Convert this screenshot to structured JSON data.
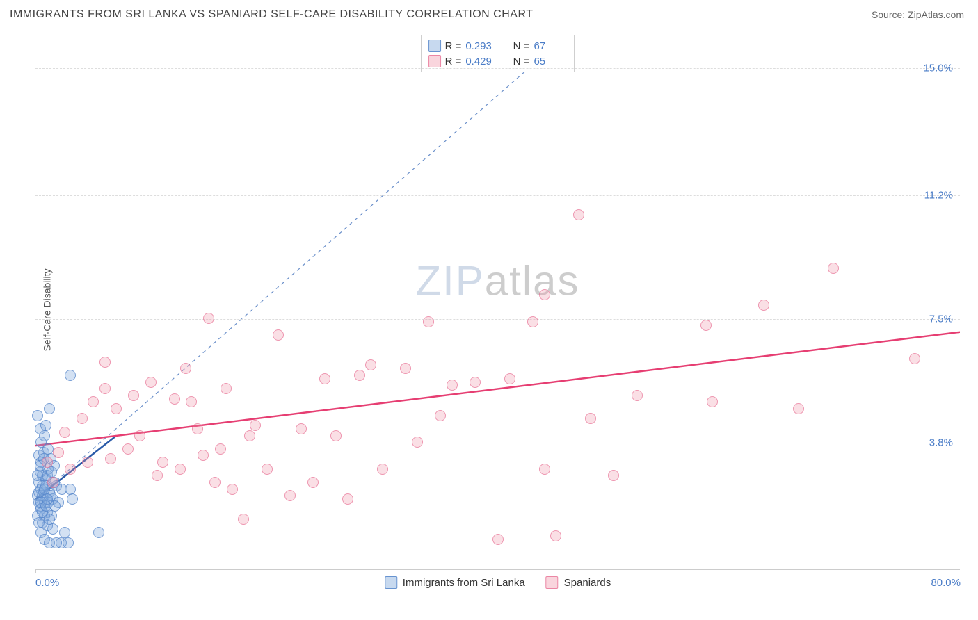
{
  "header": {
    "title": "IMMIGRANTS FROM SRI LANKA VS SPANIARD SELF-CARE DISABILITY CORRELATION CHART",
    "source_prefix": "Source: ",
    "source_name": "ZipAtlas.com"
  },
  "watermark": {
    "zip": "ZIP",
    "atlas": "atlas"
  },
  "chart": {
    "type": "scatter",
    "background_color": "#ffffff",
    "grid_color": "#dddddd",
    "axis_color": "#cccccc",
    "label_color": "#555555",
    "tick_label_color": "#4a7cc7",
    "xlim": [
      0,
      80
    ],
    "ylim": [
      0,
      16
    ],
    "x_ticks": [
      0,
      16,
      32,
      48,
      64,
      80
    ],
    "x_tick_labels_shown": {
      "0": "0.0%",
      "80": "80.0%"
    },
    "y_gridlines": [
      3.8,
      7.5,
      11.2,
      15.0
    ],
    "y_tick_labels": [
      "3.8%",
      "7.5%",
      "11.2%",
      "15.0%"
    ],
    "y_axis_label": "Self-Care Disability",
    "series": [
      {
        "name": "Immigrants from Sri Lanka",
        "color_fill": "rgba(130,170,220,0.35)",
        "color_stroke": "rgba(80,130,200,0.7)",
        "marker_radius_px": 8,
        "R": "0.293",
        "N": "67",
        "trend": {
          "x1": 0,
          "y1": 2.1,
          "x2": 7,
          "y2": 4.0,
          "stroke": "#2a5aa8",
          "width": 2.5,
          "dash": "none"
        },
        "ref_line": {
          "x1": 0,
          "y1": 2.1,
          "x2": 46,
          "y2": 16.0,
          "stroke": "#6a8fca",
          "width": 1.2,
          "dash": "5,5"
        },
        "points": [
          [
            0.2,
            2.2
          ],
          [
            0.3,
            2.6
          ],
          [
            0.4,
            1.9
          ],
          [
            0.5,
            2.4
          ],
          [
            0.6,
            2.8
          ],
          [
            0.5,
            3.2
          ],
          [
            0.3,
            3.4
          ],
          [
            0.8,
            2.0
          ],
          [
            0.6,
            1.4
          ],
          [
            1.0,
            1.7
          ],
          [
            1.2,
            2.3
          ],
          [
            0.9,
            2.7
          ],
          [
            1.1,
            3.0
          ],
          [
            0.7,
            3.5
          ],
          [
            1.3,
            3.3
          ],
          [
            1.5,
            2.1
          ],
          [
            0.4,
            4.2
          ],
          [
            0.2,
            4.6
          ],
          [
            1.8,
            2.5
          ],
          [
            2.0,
            2.0
          ],
          [
            2.3,
            2.4
          ],
          [
            1.6,
            3.1
          ],
          [
            0.5,
            1.1
          ],
          [
            0.8,
            0.9
          ],
          [
            1.2,
            0.8
          ],
          [
            1.5,
            1.2
          ],
          [
            2.2,
            0.8
          ],
          [
            3.0,
            2.4
          ],
          [
            3.2,
            2.1
          ],
          [
            0.3,
            2.0
          ],
          [
            0.6,
            2.2
          ],
          [
            0.9,
            2.5
          ],
          [
            1.0,
            1.3
          ],
          [
            1.4,
            1.6
          ],
          [
            0.4,
            2.9
          ],
          [
            0.7,
            2.3
          ],
          [
            1.1,
            2.0
          ],
          [
            1.6,
            2.6
          ],
          [
            2.5,
            1.1
          ],
          [
            5.5,
            1.1
          ],
          [
            3.0,
            5.8
          ],
          [
            2.8,
            0.8
          ],
          [
            1.8,
            0.8
          ],
          [
            0.9,
            4.3
          ],
          [
            1.2,
            4.8
          ],
          [
            0.2,
            1.6
          ],
          [
            0.5,
            1.8
          ],
          [
            0.8,
            1.6
          ],
          [
            0.3,
            2.3
          ],
          [
            0.6,
            2.5
          ],
          [
            1.0,
            2.8
          ],
          [
            1.3,
            2.2
          ],
          [
            1.7,
            1.9
          ],
          [
            0.4,
            3.1
          ],
          [
            0.7,
            3.3
          ],
          [
            1.1,
            3.6
          ],
          [
            0.5,
            2.0
          ],
          [
            0.8,
            2.4
          ],
          [
            1.4,
            2.9
          ],
          [
            0.2,
            2.8
          ],
          [
            0.6,
            1.7
          ],
          [
            0.9,
            1.9
          ],
          [
            1.2,
            1.5
          ],
          [
            0.3,
            1.4
          ],
          [
            0.5,
            3.8
          ],
          [
            0.8,
            4.0
          ],
          [
            1.0,
            2.1
          ]
        ]
      },
      {
        "name": "Spaniards",
        "color_fill": "rgba(240,150,170,0.3)",
        "color_stroke": "rgba(230,100,140,0.6)",
        "marker_radius_px": 8,
        "R": "0.429",
        "N": "65",
        "trend": {
          "x1": 0,
          "y1": 3.7,
          "x2": 80,
          "y2": 7.1,
          "stroke": "#e63e72",
          "width": 2.5,
          "dash": "none"
        },
        "points": [
          [
            1.0,
            3.2
          ],
          [
            1.5,
            2.6
          ],
          [
            2.0,
            3.5
          ],
          [
            2.5,
            4.1
          ],
          [
            3.0,
            3.0
          ],
          [
            4.0,
            4.5
          ],
          [
            5.0,
            5.0
          ],
          [
            6.0,
            5.4
          ],
          [
            6.5,
            3.3
          ],
          [
            7.0,
            4.8
          ],
          [
            8.0,
            3.6
          ],
          [
            8.5,
            5.2
          ],
          [
            9.0,
            4.0
          ],
          [
            10.0,
            5.6
          ],
          [
            10.5,
            2.8
          ],
          [
            11.0,
            3.2
          ],
          [
            12.0,
            5.1
          ],
          [
            12.5,
            3.0
          ],
          [
            13.0,
            6.0
          ],
          [
            14.0,
            4.2
          ],
          [
            15.0,
            7.5
          ],
          [
            15.5,
            2.6
          ],
          [
            16.0,
            3.6
          ],
          [
            17.0,
            2.4
          ],
          [
            18.0,
            1.5
          ],
          [
            18.5,
            4.0
          ],
          [
            19.0,
            4.3
          ],
          [
            20.0,
            3.0
          ],
          [
            21.0,
            7.0
          ],
          [
            22.0,
            2.2
          ],
          [
            23.0,
            4.2
          ],
          [
            24.0,
            2.6
          ],
          [
            25.0,
            5.7
          ],
          [
            26.0,
            4.0
          ],
          [
            27.0,
            2.1
          ],
          [
            28.0,
            5.8
          ],
          [
            29.0,
            6.1
          ],
          [
            30.0,
            3.0
          ],
          [
            32.0,
            6.0
          ],
          [
            34.0,
            7.4
          ],
          [
            36.0,
            5.5
          ],
          [
            38.0,
            5.6
          ],
          [
            40.0,
            0.9
          ],
          [
            41.0,
            5.7
          ],
          [
            43.0,
            7.4
          ],
          [
            44.0,
            8.2
          ],
          [
            44.0,
            3.0
          ],
          [
            47.0,
            10.6
          ],
          [
            45.0,
            1.0
          ],
          [
            58.0,
            7.3
          ],
          [
            58.5,
            5.0
          ],
          [
            63.0,
            7.9
          ],
          [
            66.0,
            4.8
          ],
          [
            69.0,
            9.0
          ],
          [
            76.0,
            6.3
          ],
          [
            48.0,
            4.5
          ],
          [
            50.0,
            2.8
          ],
          [
            52.0,
            5.2
          ],
          [
            33.0,
            3.8
          ],
          [
            35.0,
            4.6
          ],
          [
            6.0,
            6.2
          ],
          [
            13.5,
            5.0
          ],
          [
            16.5,
            5.4
          ],
          [
            4.5,
            3.2
          ],
          [
            14.5,
            3.4
          ]
        ]
      }
    ]
  },
  "legend_top": {
    "r_label": "R =",
    "n_label": "N ="
  },
  "legend_bottom": {
    "items": [
      "Immigrants from Sri Lanka",
      "Spaniards"
    ]
  }
}
